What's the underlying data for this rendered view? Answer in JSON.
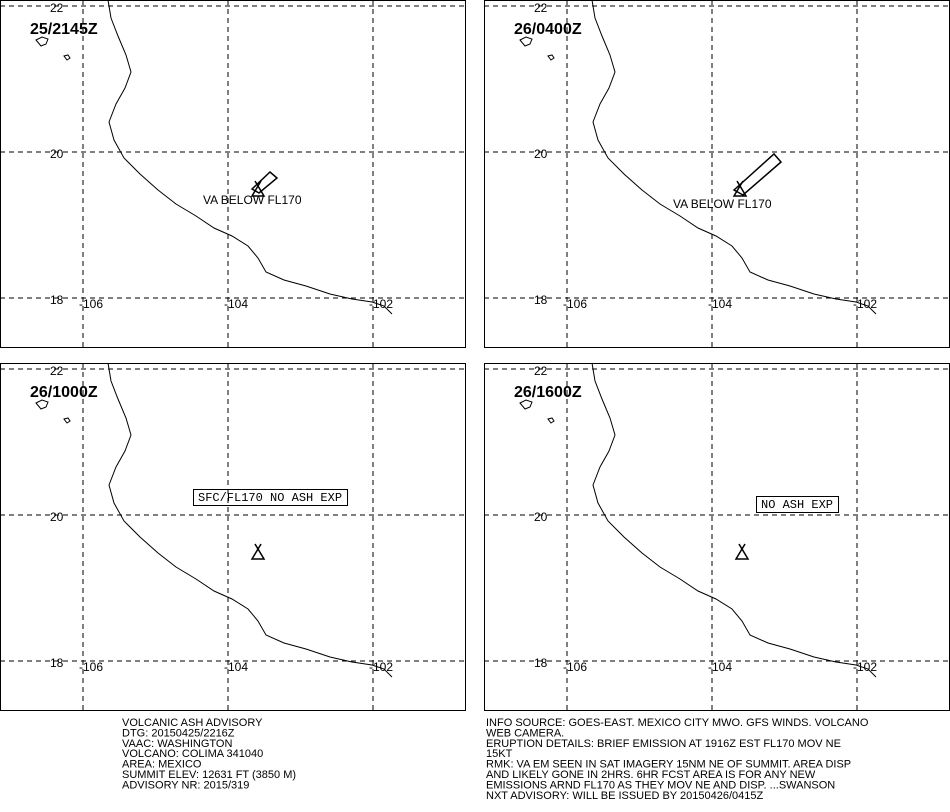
{
  "grid": {
    "lat_labels": [
      "22",
      "20",
      "18"
    ],
    "lon_labels": [
      "-106",
      "-104",
      "-102"
    ]
  },
  "panels": [
    {
      "time": "25/2145Z",
      "label": "VA BELOW FL170"
    },
    {
      "time": "26/0400Z",
      "label": "VA BELOW FL170"
    },
    {
      "time": "26/1000Z",
      "box": "SFC/FL170 NO ASH EXP"
    },
    {
      "time": "26/1600Z",
      "box": "NO ASH EXP"
    }
  ],
  "advisory": [
    "VOLCANIC ASH ADVISORY",
    "DTG: 20150425/2216Z",
    "VAAC: WASHINGTON",
    "VOLCANO: COLIMA 341040",
    "AREA: MEXICO",
    "SUMMIT ELEV: 12631 FT (3850 M)",
    "ADVISORY NR: 2015/319"
  ],
  "details": [
    "INFO SOURCE: GOES-EAST. MEXICO CITY MWO. GFS WINDS. VOLCANO",
    "WEB CAMERA.",
    "ERUPTION DETAILS: BRIEF EMISSION AT 1916Z EST FL170 MOV NE",
    "15KT",
    "RMK: VA EM SEEN IN SAT IMAGERY 15NM NE OF SUMMIT. AREA DISP",
    "AND LIKELY GONE IN 2HRS. 6HR FCST AREA IS FOR ANY NEW",
    "EMISSIONS ARND FL170 AS THEY MOV NE AND DISP. ...SWANSON",
    "NXT ADVISORY: WILL BE ISSUED BY 20150426/0415Z"
  ]
}
